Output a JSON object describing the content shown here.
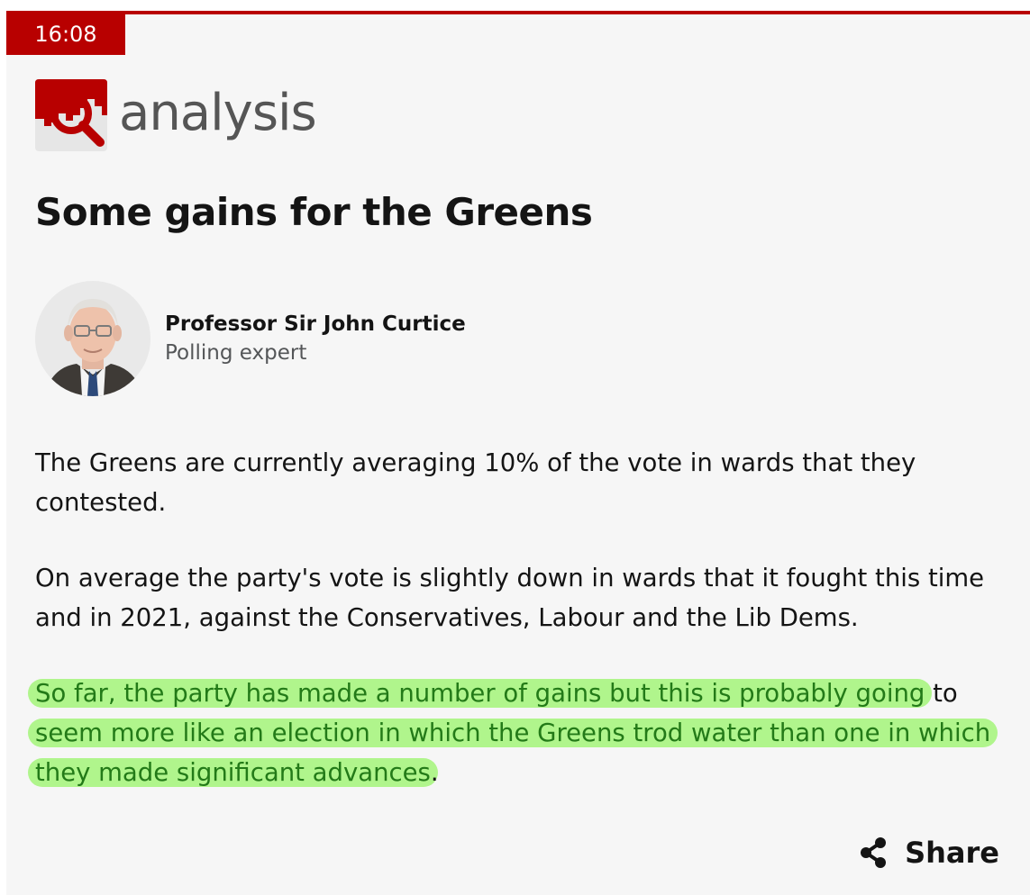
{
  "post": {
    "time": "16:08",
    "label": "analysis",
    "headline": "Some gains for the Greens"
  },
  "author": {
    "name": "Professor Sir John Curtice",
    "role": "Polling expert"
  },
  "body": {
    "paragraph_1": "The Greens are currently averaging 10% of the vote in wards that they contested.",
    "paragraph_2": "On average the party's vote is slightly down in wards that it fought this time and in 2021, against the Conservatives, Labour and the Lib Dems.",
    "paragraph_3_highlight_a": "So far, the party has made a number of gains but this is probably going",
    "paragraph_3_plain_a": " to ",
    "paragraph_3_highlight_b": "seem more like an election in which the Greens trod water than one in which they made significant advances",
    "paragraph_3_plain_b": "."
  },
  "share": {
    "label": "Share"
  },
  "colors": {
    "brand_red": "#b80000",
    "highlight": "#b0f58c",
    "highlight_text": "#237a18"
  },
  "icons": {
    "analysis_logo": "analysis-magnifier-icon",
    "share": "share-icon"
  }
}
